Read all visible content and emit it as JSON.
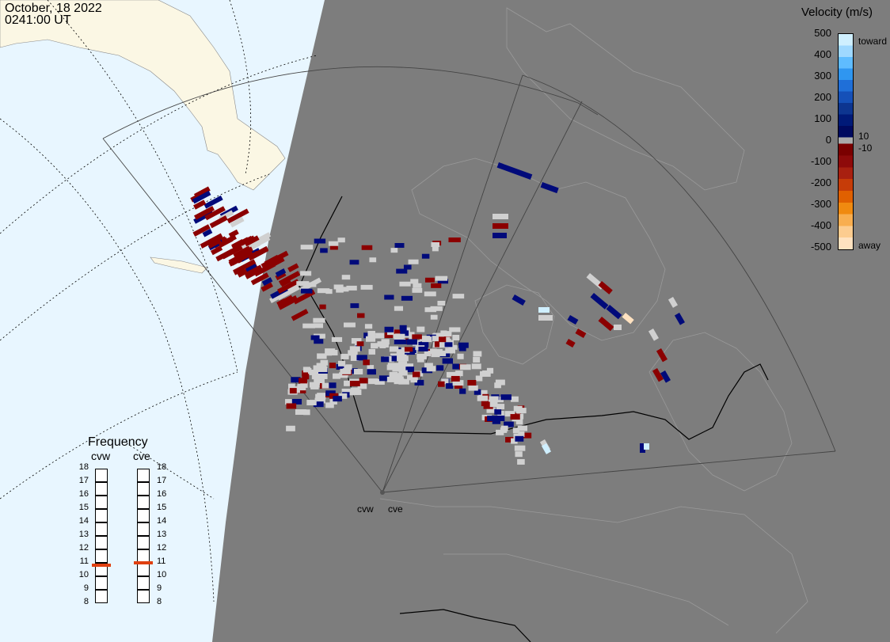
{
  "header": {
    "date": "October, 18 2022",
    "time": "0241:00 UT"
  },
  "velocity_scale": {
    "title": "Velocity (m/s)",
    "ticks": [
      "500",
      "400",
      "300",
      "200",
      "100",
      "0",
      "-100",
      "-200",
      "-300",
      "-400",
      "-500"
    ],
    "toward_label": "toward",
    "away_label": "away",
    "pos_threshold": "10",
    "neg_threshold": "-10",
    "colors_toward": [
      "#cfefff",
      "#9fd8ff",
      "#5fbcff",
      "#2f96f0",
      "#1f6fd8",
      "#1550b8",
      "#0d3590",
      "#001a78",
      "#000a5f"
    ],
    "colors_away": [
      "#7a0000",
      "#8e0a0a",
      "#a82010",
      "#c63c08",
      "#e06000",
      "#f08a10",
      "#f8ae50",
      "#fccc90",
      "#ffe2c0"
    ],
    "gap_color": "#aaaaaa"
  },
  "radars": [
    {
      "label": "cvw"
    },
    {
      "label": "cve"
    }
  ],
  "frequency_panel": {
    "title": "Frequency",
    "columns": [
      {
        "label": "cvw",
        "value": 10.8
      },
      {
        "label": "cve",
        "value": 11.0
      }
    ],
    "ticks": [
      "18",
      "17",
      "16",
      "15",
      "14",
      "13",
      "12",
      "11",
      "10",
      "9",
      "8"
    ]
  },
  "map_colors": {
    "night": "#7d7d7d",
    "day_ocean": "#e8f6ff",
    "day_land": "#fbf7e4",
    "scatter": "#d0d0d0"
  }
}
